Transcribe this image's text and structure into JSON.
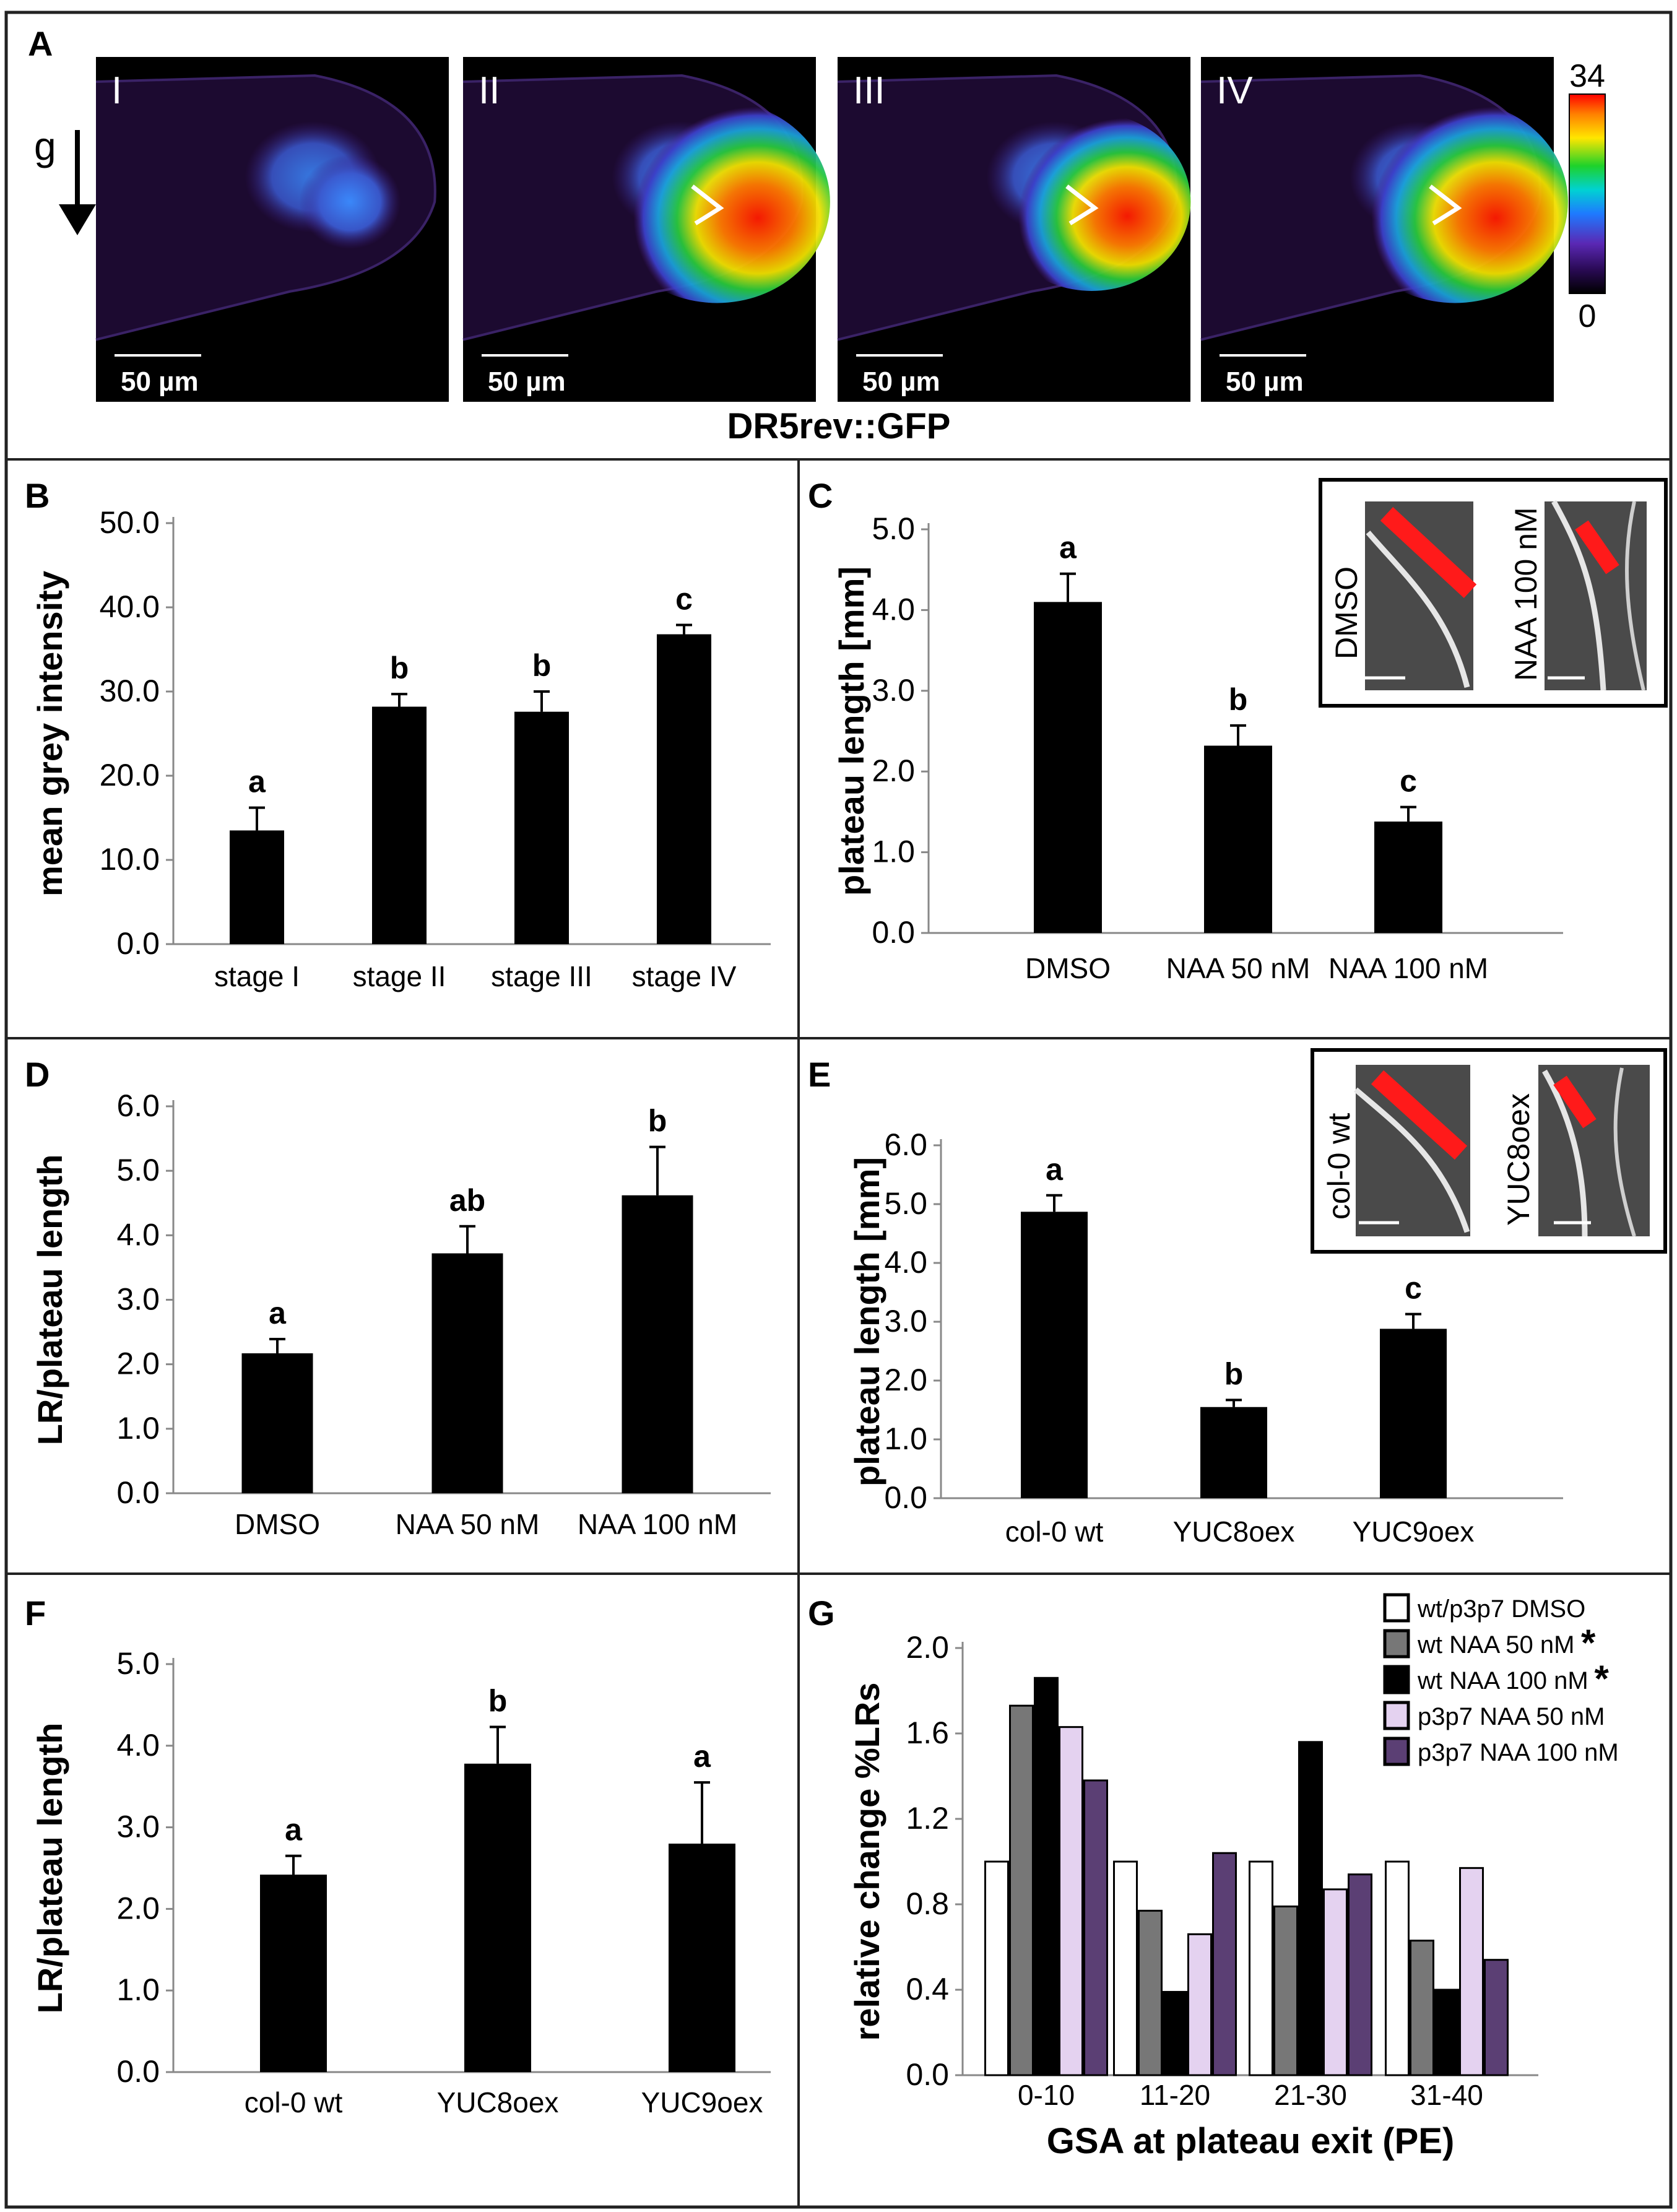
{
  "panel_a": {
    "letter": "A",
    "gravity_label": "g",
    "caption": "DR5rev::GFP",
    "colorbar": {
      "max_label": "34",
      "min_label": "0"
    },
    "images": [
      {
        "stage": "I",
        "scale_bar": "50 µm",
        "intensity": 0.28
      },
      {
        "stage": "II",
        "scale_bar": "50 µm",
        "intensity": 0.95
      },
      {
        "stage": "III",
        "scale_bar": "50 µm",
        "intensity": 0.8
      },
      {
        "stage": "IV",
        "scale_bar": "50 µm",
        "intensity": 0.95
      }
    ]
  },
  "panel_c_inset": {
    "labels": [
      "DMSO",
      "NAA 100 nM"
    ]
  },
  "panel_e_inset": {
    "labels": [
      "col-0 wt",
      "YUC8oex"
    ]
  },
  "chart_data": [
    {
      "panel": "B",
      "type": "bar",
      "title": "",
      "ylabel": "mean grey intensity",
      "xlabel": "",
      "ylim": [
        0,
        50
      ],
      "yticks": [
        "0.0",
        "10.0",
        "20.0",
        "30.0",
        "40.0",
        "50.0"
      ],
      "categories": [
        "stage I",
        "stage II",
        "stage III",
        "stage IV"
      ],
      "values": [
        13.5,
        28.2,
        27.6,
        36.8
      ],
      "errors": [
        2.7,
        1.5,
        2.4,
        1.1
      ],
      "letters": [
        "a",
        "b",
        "b",
        "c"
      ]
    },
    {
      "panel": "C",
      "type": "bar",
      "title": "",
      "ylabel": "plateau length [mm]",
      "xlabel": "",
      "ylim": [
        0,
        5
      ],
      "yticks": [
        "0.0",
        "1.0",
        "2.0",
        "3.0",
        "4.0",
        "5.0"
      ],
      "categories": [
        "DMSO",
        "NAA 50 nM",
        "NAA 100 nM"
      ],
      "values": [
        4.1,
        2.32,
        1.38
      ],
      "errors": [
        0.35,
        0.25,
        0.18
      ],
      "letters": [
        "a",
        "b",
        "c"
      ]
    },
    {
      "panel": "D",
      "type": "bar",
      "title": "",
      "ylabel": "LR/plateau length",
      "xlabel": "",
      "ylim": [
        0,
        6
      ],
      "yticks": [
        "0.0",
        "1.0",
        "2.0",
        "3.0",
        "4.0",
        "5.0",
        "6.0"
      ],
      "categories": [
        "DMSO",
        "NAA 50 nM",
        "NAA 100 nM"
      ],
      "values": [
        2.17,
        3.72,
        4.62
      ],
      "errors": [
        0.22,
        0.42,
        0.75
      ],
      "letters": [
        "a",
        "ab",
        "b"
      ]
    },
    {
      "panel": "E",
      "type": "bar",
      "title": "",
      "ylabel": "plateau length [mm]",
      "xlabel": "",
      "ylim": [
        0,
        6
      ],
      "yticks": [
        "0.0",
        "1.0",
        "2.0",
        "3.0",
        "4.0",
        "5.0",
        "6.0"
      ],
      "categories": [
        "col-0 wt",
        "YUC8oex",
        "YUC9oex"
      ],
      "values": [
        4.87,
        1.55,
        2.88
      ],
      "errors": [
        0.28,
        0.12,
        0.25
      ],
      "letters": [
        "a",
        "b",
        "c"
      ]
    },
    {
      "panel": "F",
      "type": "bar",
      "title": "",
      "ylabel": "LR/plateau length",
      "xlabel": "",
      "ylim": [
        0,
        5
      ],
      "yticks": [
        "0.0",
        "1.0",
        "2.0",
        "3.0",
        "4.0",
        "5.0"
      ],
      "categories": [
        "col-0 wt",
        "YUC8oex",
        "YUC9oex"
      ],
      "values": [
        2.42,
        3.78,
        2.8
      ],
      "errors": [
        0.23,
        0.45,
        0.75
      ],
      "letters": [
        "a",
        "b",
        "a"
      ]
    },
    {
      "panel": "G",
      "type": "bar",
      "title": "",
      "ylabel": "relative change %LRs",
      "xlabel": "GSA at plateau exit (PE)",
      "ylim": [
        0,
        2
      ],
      "yticks": [
        "0.0",
        "0.4",
        "0.8",
        "1.2",
        "1.6",
        "2.0"
      ],
      "categories": [
        "0-10",
        "11-20",
        "21-30",
        "31-40"
      ],
      "legend_position": "top-right",
      "series": [
        {
          "name": "wt/p3p7 DMSO",
          "color": "#ffffff",
          "starred": false,
          "values": [
            1.0,
            1.0,
            1.0,
            1.0
          ]
        },
        {
          "name": "wt NAA 50 nM",
          "color": "#777777",
          "starred": true,
          "values": [
            1.73,
            0.77,
            0.79,
            0.63
          ]
        },
        {
          "name": "wt NAA 100 nM",
          "color": "#000000",
          "starred": true,
          "values": [
            1.86,
            0.39,
            1.56,
            0.4
          ]
        },
        {
          "name": "p3p7 NAA 50 nM",
          "color": "#e4d2f0",
          "starred": false,
          "values": [
            1.63,
            0.66,
            0.87,
            0.97
          ]
        },
        {
          "name": "p3p7 NAA 100 nM",
          "color": "#5b3f74",
          "starred": false,
          "values": [
            1.38,
            1.04,
            0.94,
            0.54
          ]
        }
      ]
    }
  ]
}
